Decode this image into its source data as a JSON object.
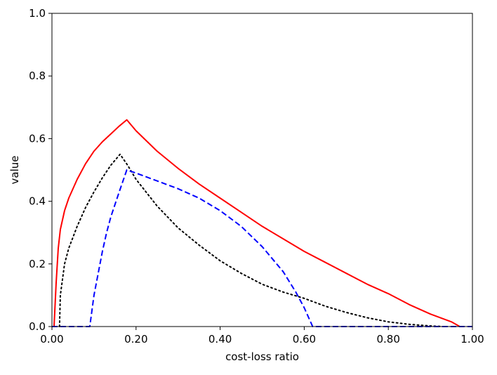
{
  "chart_data": {
    "type": "line",
    "title": "",
    "xlabel": "cost-loss ratio",
    "ylabel": "value",
    "xlim": [
      0,
      1
    ],
    "ylim": [
      0,
      1
    ],
    "grid": false,
    "legend": "none",
    "x_ticks": [
      {
        "value": 0.0,
        "label": "0.00"
      },
      {
        "value": 0.2,
        "label": "0.20"
      },
      {
        "value": 0.4,
        "label": "0.40"
      },
      {
        "value": 0.6,
        "label": "0.60"
      },
      {
        "value": 0.8,
        "label": "0.80"
      },
      {
        "value": 1.0,
        "label": "1.00"
      }
    ],
    "y_ticks": [
      {
        "value": 0.0,
        "label": "0.0"
      },
      {
        "value": 0.2,
        "label": "0.2"
      },
      {
        "value": 0.4,
        "label": "0.4"
      },
      {
        "value": 0.6,
        "label": "0.6"
      },
      {
        "value": 0.8,
        "label": "0.8"
      },
      {
        "value": 1.0,
        "label": "1.0"
      }
    ],
    "series": [
      {
        "color": "#ff0000",
        "style": "solid",
        "x": [
          0.005,
          0.01,
          0.015,
          0.02,
          0.03,
          0.04,
          0.05,
          0.06,
          0.08,
          0.1,
          0.12,
          0.14,
          0.16,
          0.178,
          0.2,
          0.25,
          0.3,
          0.35,
          0.4,
          0.45,
          0.5,
          0.55,
          0.6,
          0.65,
          0.7,
          0.75,
          0.8,
          0.85,
          0.9,
          0.95,
          0.97
        ],
        "y": [
          0.0,
          0.14,
          0.25,
          0.31,
          0.37,
          0.41,
          0.44,
          0.47,
          0.52,
          0.56,
          0.59,
          0.615,
          0.64,
          0.66,
          0.625,
          0.56,
          0.505,
          0.455,
          0.41,
          0.365,
          0.32,
          0.28,
          0.24,
          0.205,
          0.17,
          0.135,
          0.105,
          0.07,
          0.04,
          0.015,
          0.0
        ]
      },
      {
        "color": "#000000",
        "style": "dotted",
        "x": [
          0.018,
          0.02,
          0.03,
          0.04,
          0.06,
          0.08,
          0.1,
          0.12,
          0.14,
          0.162,
          0.18,
          0.2,
          0.25,
          0.3,
          0.35,
          0.4,
          0.45,
          0.5,
          0.55,
          0.6,
          0.65,
          0.7,
          0.75,
          0.8,
          0.85,
          0.9,
          0.93
        ],
        "y": [
          0.0,
          0.1,
          0.2,
          0.25,
          0.32,
          0.38,
          0.43,
          0.475,
          0.515,
          0.55,
          0.515,
          0.47,
          0.385,
          0.315,
          0.26,
          0.21,
          0.17,
          0.135,
          0.11,
          0.09,
          0.065,
          0.045,
          0.028,
          0.015,
          0.007,
          0.002,
          0.0
        ]
      },
      {
        "color": "#0000ff",
        "style": "dashed",
        "x": [
          0.0,
          0.09,
          0.1,
          0.11,
          0.12,
          0.13,
          0.14,
          0.16,
          0.178,
          0.2,
          0.25,
          0.3,
          0.35,
          0.4,
          0.45,
          0.5,
          0.55,
          0.58,
          0.6,
          0.62,
          0.7,
          0.8,
          0.9,
          1.0
        ],
        "y": [
          0.0,
          0.0,
          0.1,
          0.17,
          0.24,
          0.3,
          0.35,
          0.43,
          0.5,
          0.49,
          0.465,
          0.44,
          0.41,
          0.37,
          0.32,
          0.255,
          0.175,
          0.11,
          0.06,
          0.0,
          0.0,
          0.0,
          0.0,
          0.0
        ]
      }
    ]
  }
}
